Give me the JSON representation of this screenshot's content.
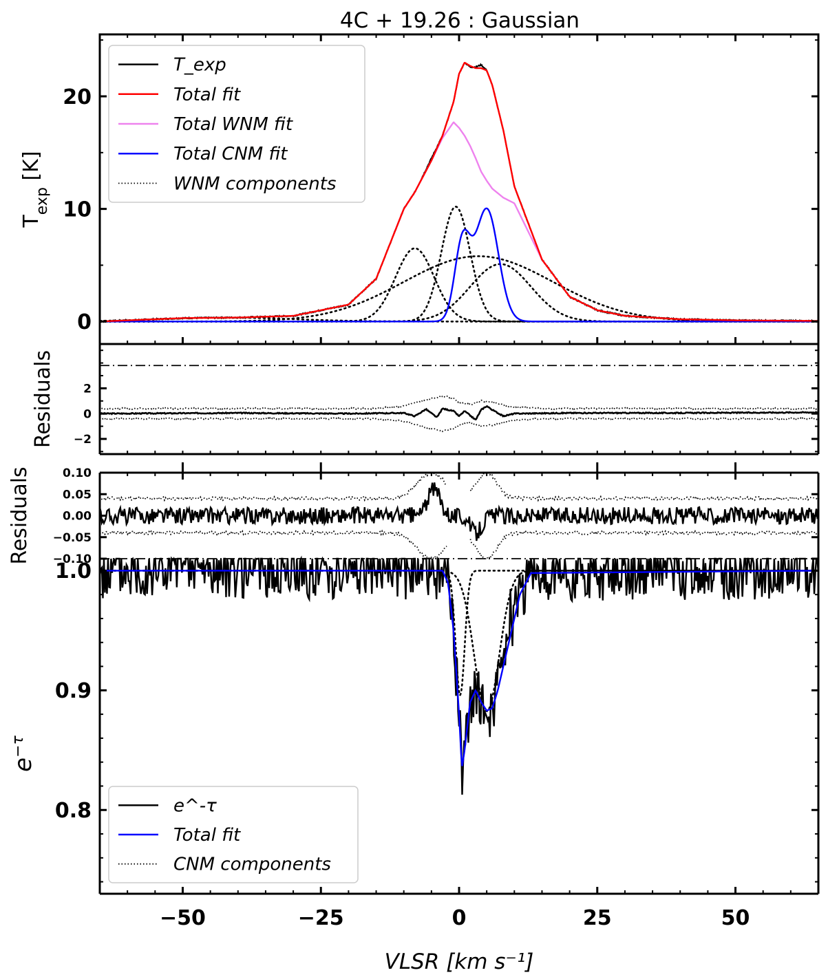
{
  "figure": {
    "title": "4C + 19.26 : Gaussian",
    "xlabel": "VLSR [km s⁻¹]"
  },
  "chart_data": [
    {
      "panel": "emission",
      "type": "line",
      "ylabel": "T_exp [K]",
      "xlim": [
        -65,
        65
      ],
      "ylim": [
        -2,
        25.5
      ],
      "xticks": [
        -50,
        -25,
        0,
        25,
        50
      ],
      "yticks": [
        0,
        10,
        20
      ],
      "xticklabels_shown": false,
      "legend": {
        "position": "top-left",
        "entries": [
          {
            "label": "T_exp",
            "color": "#000000",
            "style": "solid"
          },
          {
            "label": "Total fit",
            "color": "#ff0000",
            "style": "solid"
          },
          {
            "label": "Total WNM fit",
            "color": "#ee82ee",
            "style": "solid"
          },
          {
            "label": "Total CNM fit",
            "color": "#0000ff",
            "style": "solid"
          },
          {
            "label": "WNM components",
            "color": "#000000",
            "style": "dotted"
          }
        ]
      },
      "wnm_components": [
        {
          "amp": 6.5,
          "center": -8.0,
          "sigma": 3.5
        },
        {
          "amp": 10.2,
          "center": -0.6,
          "sigma": 2.6
        },
        {
          "amp": 5.1,
          "center": 7.5,
          "sigma": 5.5
        },
        {
          "amp": 5.8,
          "center": 3.5,
          "sigma": 13.5
        },
        {
          "amp": 0.35,
          "center": -42.0,
          "sigma": 12.0
        }
      ],
      "cnm_components": [
        {
          "amp": 6.8,
          "center": 0.6,
          "sigma": 1.4
        },
        {
          "amp": 10.0,
          "center": 5.0,
          "sigma": 2.1
        }
      ],
      "series": [
        {
          "name": "T_exp",
          "color": "#000000",
          "x": [
            -65,
            -50,
            -40,
            -30,
            -20,
            -15,
            -10,
            -8,
            -5,
            -3,
            -1,
            0,
            1,
            2,
            3,
            4,
            5,
            6,
            8,
            10,
            15,
            20,
            25,
            30,
            40,
            50,
            65
          ],
          "y": [
            0.0,
            0.3,
            0.35,
            0.5,
            1.5,
            3.8,
            10.0,
            11.5,
            14.5,
            16.5,
            19.5,
            22.0,
            23.0,
            22.6,
            22.6,
            22.8,
            22.3,
            21.0,
            17.0,
            12.0,
            5.5,
            2.2,
            1.0,
            0.5,
            0.2,
            0.1,
            0.05
          ]
        },
        {
          "name": "Total fit",
          "color": "#ff0000",
          "x": [
            -65,
            -50,
            -40,
            -30,
            -20,
            -15,
            -10,
            -8,
            -5,
            -3,
            -1,
            0,
            1,
            2,
            3,
            4,
            5,
            6,
            8,
            10,
            15,
            20,
            25,
            30,
            40,
            50,
            65
          ],
          "y": [
            0.0,
            0.3,
            0.35,
            0.5,
            1.5,
            3.8,
            10.0,
            11.5,
            14.3,
            16.5,
            19.5,
            22.0,
            23.0,
            22.7,
            22.5,
            22.5,
            22.3,
            21.0,
            17.0,
            12.0,
            5.5,
            2.2,
            1.0,
            0.5,
            0.2,
            0.1,
            0.05
          ]
        },
        {
          "name": "Total WNM fit",
          "color": "#ee82ee",
          "x": [
            -65,
            -50,
            -40,
            -30,
            -20,
            -15,
            -10,
            -8,
            -5,
            -3,
            -1,
            0,
            1,
            2,
            3,
            4,
            5,
            6,
            8,
            10,
            15,
            20,
            25,
            30,
            40,
            50,
            65
          ],
          "y": [
            0.0,
            0.3,
            0.35,
            0.5,
            1.5,
            3.8,
            10.0,
            11.5,
            14.3,
            16.3,
            17.7,
            17.2,
            16.5,
            15.6,
            14.5,
            13.3,
            12.5,
            11.8,
            11.0,
            10.5,
            5.5,
            2.2,
            1.0,
            0.5,
            0.2,
            0.1,
            0.05
          ]
        }
      ]
    },
    {
      "panel": "emission_residuals",
      "type": "line",
      "ylabel": "Residuals",
      "xlim": [
        -65,
        65
      ],
      "ylim": [
        -3.2,
        5.5
      ],
      "yticks": [
        -2,
        0,
        2
      ],
      "dashdot_line_y": 3.8,
      "series": [
        {
          "name": "Residuals",
          "x": [
            -65,
            -40,
            -20,
            -10,
            -8,
            -6,
            -4,
            -3,
            -1,
            0,
            1,
            3,
            4,
            5,
            6,
            8,
            10,
            20,
            40,
            65
          ],
          "y": [
            0.0,
            0.05,
            0.0,
            0.05,
            -0.2,
            0.35,
            -0.3,
            0.4,
            0.2,
            -0.2,
            0.2,
            -0.5,
            0.3,
            0.6,
            0.3,
            -0.2,
            0.0,
            0.05,
            0.05,
            0.1
          ]
        },
        {
          "name": "Envelope upper",
          "style": "dotted",
          "x": [
            -65,
            -15,
            -10,
            -5,
            -3,
            -1,
            0,
            2,
            4,
            6,
            10,
            15,
            65
          ],
          "y": [
            0.4,
            0.4,
            0.6,
            1.2,
            1.4,
            1.2,
            0.9,
            0.7,
            1.0,
            0.9,
            0.5,
            0.4,
            0.4
          ]
        },
        {
          "name": "Envelope lower",
          "style": "dotted",
          "x": [
            -65,
            -15,
            -10,
            -5,
            -3,
            -1,
            0,
            2,
            4,
            6,
            10,
            15,
            65
          ],
          "y": [
            -0.4,
            -0.4,
            -0.6,
            -1.2,
            -1.4,
            -1.2,
            -0.9,
            -0.7,
            -1.0,
            -0.9,
            -0.5,
            -0.4,
            -0.4
          ]
        }
      ]
    },
    {
      "panel": "absorption_residuals",
      "type": "line",
      "ylabel": "Residuals",
      "xlim": [
        -65,
        65
      ],
      "ylim": [
        -0.1,
        0.1
      ],
      "yticks": [
        -0.1,
        -0.05,
        0.0,
        0.05,
        0.1
      ],
      "yticklabels": [
        "−0.10",
        "−0.05",
        "0.00",
        "0.05",
        "0.10"
      ],
      "dashdot_line_y": -0.1,
      "noise_rms": 0.018,
      "envelope_base": 0.04,
      "envelope_peaks": [
        {
          "center": -5,
          "amp": 0.06,
          "sigma": 2.5
        },
        {
          "center": 5,
          "amp": 0.06,
          "sigma": 1.8
        }
      ],
      "envelope_gap": [
        -2.2,
        2.0
      ]
    },
    {
      "panel": "absorption",
      "type": "line",
      "ylabel": "e^-τ",
      "xlim": [
        -65,
        65
      ],
      "ylim": [
        0.73,
        1.01
      ],
      "yticks": [
        0.8,
        0.9,
        1.0
      ],
      "yticklabels": [
        "0.8",
        "0.9",
        "1.0"
      ],
      "noise_rms": 0.02,
      "legend": {
        "position": "bottom-left",
        "entries": [
          {
            "label": "e^-τ",
            "color": "#000000",
            "style": "solid"
          },
          {
            "label": "Total fit",
            "color": "#0000ff",
            "style": "solid"
          },
          {
            "label": "CNM components",
            "color": "#000000",
            "style": "dotted"
          }
        ]
      },
      "tau_components": [
        {
          "tau": 0.11,
          "center": 0.2,
          "sigma": 0.8
        },
        {
          "tau": 0.125,
          "center": 5.0,
          "sigma": 2.2
        }
      ],
      "series": [
        {
          "name": "Total fit",
          "color": "#0000ff",
          "x": [
            -65,
            -3,
            -2,
            -1,
            0,
            0.5,
            1,
            2,
            3,
            4,
            5,
            6,
            7,
            9,
            11,
            13,
            65
          ],
          "y": [
            1.0,
            1.0,
            0.99,
            0.95,
            0.88,
            0.835,
            0.85,
            0.89,
            0.9,
            0.89,
            0.883,
            0.885,
            0.9,
            0.94,
            0.98,
            0.998,
            1.0
          ]
        },
        {
          "name": "CNM component 1",
          "style": "dotted",
          "x": [
            -65,
            -2,
            -1,
            0,
            0.5,
            1,
            2,
            3,
            65
          ],
          "y": [
            1.0,
            0.99,
            0.95,
            0.9,
            0.895,
            0.9,
            0.96,
            0.995,
            1.0
          ]
        },
        {
          "name": "CNM component 2",
          "style": "dotted",
          "x": [
            -65,
            -3,
            0,
            2,
            4,
            5,
            6,
            8,
            10,
            12,
            65
          ],
          "y": [
            1.0,
            1.0,
            0.98,
            0.93,
            0.89,
            0.883,
            0.89,
            0.93,
            0.975,
            0.997,
            1.0
          ]
        }
      ]
    }
  ]
}
